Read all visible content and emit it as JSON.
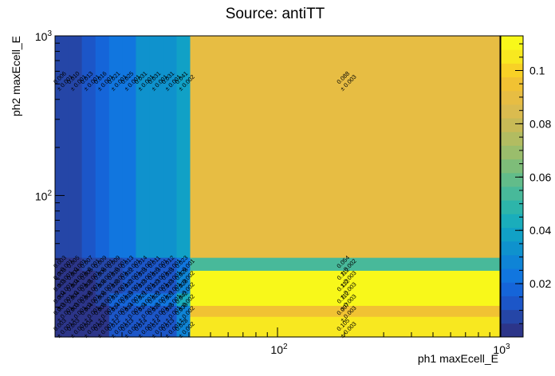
{
  "chart_data": {
    "type": "heatmap",
    "title": "Source: antiTT",
    "xlabel": "ph1 maxEcell_E",
    "ylabel": "ph2 maxEcell_E",
    "xscale": "log",
    "yscale": "log",
    "xlim": [
      10,
      1000
    ],
    "ylim": [
      13,
      1000
    ],
    "x_edges": [
      10,
      11.5,
      13.2,
      15.2,
      17.5,
      20.1,
      23.1,
      26.6,
      30.6,
      35.2,
      40.5,
      1000
    ],
    "y_edges": [
      13,
      17.5,
      20.5,
      24.5,
      29,
      34,
      41,
      1000
    ],
    "x_tick_labels": [
      "10^2",
      "10^3"
    ],
    "x_tick_values": [
      100,
      1000
    ],
    "y_tick_labels": [
      "10^2",
      "10^3"
    ],
    "y_tick_values": [
      100,
      1000
    ],
    "colorbar": {
      "range": [
        0,
        0.113
      ],
      "tick_values": [
        0.02,
        0.04,
        0.06,
        0.08,
        0.1
      ],
      "tick_labels": [
        "0.02",
        "0.04",
        "0.06",
        "0.08",
        "0.1"
      ],
      "palette": [
        "#2c3589",
        "#2546a7",
        "#1c56c8",
        "#1565d9",
        "#1176df",
        "#0f84d6",
        "#0f92cd",
        "#11a1c6",
        "#1aadbb",
        "#2db5aa",
        "#48b99a",
        "#62bc8a",
        "#7ebd79",
        "#9abd6c",
        "#b2bc61",
        "#c8ba56",
        "#dabb4f",
        "#e7bd43",
        "#f1c233",
        "#f8d126",
        "#f8e820",
        "#f8f81a"
      ]
    },
    "cells": [
      {
        "ix": 0,
        "iy": 0,
        "value": 0.003,
        "label": "0.003",
        "err": "± 0.001"
      },
      {
        "ix": 1,
        "iy": 0,
        "value": 0.003,
        "label": "0.003",
        "err": "± 0.001"
      },
      {
        "ix": 2,
        "iy": 0,
        "value": 0.004,
        "label": "0.004",
        "err": "± 0.001"
      },
      {
        "ix": 3,
        "iy": 0,
        "value": 0.004,
        "label": "0.004",
        "err": "± 0.001"
      },
      {
        "ix": 4,
        "iy": 0,
        "value": 0.012,
        "label": "0.012",
        "err": "± 0.001"
      },
      {
        "ix": 5,
        "iy": 0,
        "value": 0.013,
        "label": "0.013",
        "err": "± 0.001"
      },
      {
        "ix": 6,
        "iy": 0,
        "value": 0.014,
        "label": "0.014",
        "err": "± 0.001"
      },
      {
        "ix": 7,
        "iy": 0,
        "value": 0.014,
        "label": "0.014",
        "err": "± 0.001"
      },
      {
        "ix": 8,
        "iy": 0,
        "value": 0.013,
        "label": "0.013",
        "err": "± 0.001"
      },
      {
        "ix": 9,
        "iy": 0,
        "value": 0.028,
        "label": "0.028",
        "err": "± 0.002"
      },
      {
        "ix": 10,
        "iy": 0,
        "value": 0.105,
        "label": "0.105",
        "err": "± 0.003"
      },
      {
        "ix": 0,
        "iy": 1,
        "value": 0.003,
        "label": "0.003",
        "err": "± 0.001"
      },
      {
        "ix": 1,
        "iy": 1,
        "value": 0.003,
        "label": "0.003",
        "err": "± 0.001"
      },
      {
        "ix": 2,
        "iy": 1,
        "value": 0.004,
        "label": "0.004",
        "err": "± 0.001"
      },
      {
        "ix": 3,
        "iy": 1,
        "value": 0.005,
        "label": "0.005",
        "err": "± 0.001"
      },
      {
        "ix": 4,
        "iy": 1,
        "value": 0.014,
        "label": "0.014",
        "err": "± 0.001"
      },
      {
        "ix": 5,
        "iy": 1,
        "value": 0.014,
        "label": "0.014",
        "err": "± 0.001"
      },
      {
        "ix": 6,
        "iy": 1,
        "value": 0.014,
        "label": "0.014",
        "err": "± 0.001"
      },
      {
        "ix": 7,
        "iy": 1,
        "value": 0.015,
        "label": "0.015",
        "err": "± 0.001"
      },
      {
        "ix": 8,
        "iy": 1,
        "value": 0.015,
        "label": "0.015",
        "err": "± 0.001"
      },
      {
        "ix": 9,
        "iy": 1,
        "value": 0.03,
        "label": "0.030",
        "err": "± 0.002"
      },
      {
        "ix": 10,
        "iy": 1,
        "value": 0.097,
        "label": "0.097",
        "err": "± 0.003"
      },
      {
        "ix": 0,
        "iy": 2,
        "value": 0.004,
        "label": "0.004",
        "err": "± 0.001"
      },
      {
        "ix": 1,
        "iy": 2,
        "value": 0.004,
        "label": "0.004",
        "err": "± 0.001"
      },
      {
        "ix": 2,
        "iy": 2,
        "value": 0.005,
        "label": "0.005",
        "err": "± 0.001"
      },
      {
        "ix": 3,
        "iy": 2,
        "value": 0.006,
        "label": "0.006",
        "err": "± 0.001"
      },
      {
        "ix": 4,
        "iy": 2,
        "value": 0.017,
        "label": "0.017",
        "err": "± 0.001"
      },
      {
        "ix": 5,
        "iy": 2,
        "value": 0.019,
        "label": "0.019",
        "err": "± 0.001"
      },
      {
        "ix": 6,
        "iy": 2,
        "value": 0.021,
        "label": "0.021",
        "err": "± 0.001"
      },
      {
        "ix": 7,
        "iy": 2,
        "value": 0.022,
        "label": "0.022",
        "err": "± 0.001"
      },
      {
        "ix": 8,
        "iy": 2,
        "value": 0.021,
        "label": "0.021",
        "err": "± 0.001"
      },
      {
        "ix": 9,
        "iy": 2,
        "value": 0.042,
        "label": "0.042",
        "err": "± 0.002"
      },
      {
        "ix": 10,
        "iy": 2,
        "value": 0.112,
        "label": "0.112",
        "err": "± 0.003"
      },
      {
        "ix": 0,
        "iy": 3,
        "value": 0.003,
        "label": "0.003",
        "err": "± 0.001"
      },
      {
        "ix": 1,
        "iy": 3,
        "value": 0.004,
        "label": "0.004",
        "err": "± 0.001"
      },
      {
        "ix": 2,
        "iy": 3,
        "value": 0.005,
        "label": "0.005",
        "err": "± 0.001"
      },
      {
        "ix": 3,
        "iy": 3,
        "value": 0.006,
        "label": "0.006",
        "err": "± 0.001"
      },
      {
        "ix": 4,
        "iy": 3,
        "value": 0.01,
        "label": "0.010",
        "err": "± 0.001"
      },
      {
        "ix": 5,
        "iy": 3,
        "value": 0.012,
        "label": "0.012",
        "err": "± 0.001"
      },
      {
        "ix": 6,
        "iy": 3,
        "value": 0.013,
        "label": "0.013",
        "err": "± 0.001"
      },
      {
        "ix": 7,
        "iy": 3,
        "value": 0.013,
        "label": "0.013",
        "err": "± 0.001"
      },
      {
        "ix": 8,
        "iy": 3,
        "value": 0.013,
        "label": "0.013",
        "err": "± 0.001"
      },
      {
        "ix": 9,
        "iy": 3,
        "value": 0.028,
        "label": "0.028",
        "err": "± 0.002"
      },
      {
        "ix": 10,
        "iy": 3,
        "value": 0.112,
        "label": "0.112",
        "err": "± 0.003"
      },
      {
        "ix": 0,
        "iy": 4,
        "value": 0.003,
        "label": "0.003",
        "err": "± 0.001"
      },
      {
        "ix": 1,
        "iy": 4,
        "value": 0.004,
        "label": "0.004",
        "err": "± 0.001"
      },
      {
        "ix": 2,
        "iy": 4,
        "value": 0.005,
        "label": "0.005",
        "err": "± 0.001"
      },
      {
        "ix": 3,
        "iy": 4,
        "value": 0.006,
        "label": "0.006",
        "err": "± 0.001"
      },
      {
        "ix": 4,
        "iy": 4,
        "value": 0.01,
        "label": "0.010",
        "err": "± 0.001"
      },
      {
        "ix": 5,
        "iy": 4,
        "value": 0.012,
        "label": "0.012",
        "err": "± 0.001"
      },
      {
        "ix": 6,
        "iy": 4,
        "value": 0.013,
        "label": "0.013",
        "err": "± 0.001"
      },
      {
        "ix": 7,
        "iy": 4,
        "value": 0.013,
        "label": "0.013",
        "err": "± 0.001"
      },
      {
        "ix": 8,
        "iy": 4,
        "value": 0.013,
        "label": "0.013",
        "err": "± 0.001"
      },
      {
        "ix": 9,
        "iy": 4,
        "value": 0.028,
        "label": "0.028",
        "err": "± 0.002"
      },
      {
        "ix": 10,
        "iy": 4,
        "value": 0.112,
        "label": "0.112",
        "err": "± 0.003"
      },
      {
        "ix": 0,
        "iy": 5,
        "value": 0.003,
        "label": "0.003",
        "err": "± 0.001"
      },
      {
        "ix": 1,
        "iy": 5,
        "value": 0.005,
        "label": "0.005",
        "err": "± 0.001"
      },
      {
        "ix": 2,
        "iy": 5,
        "value": 0.007,
        "label": "0.007",
        "err": "± 0.001"
      },
      {
        "ix": 3,
        "iy": 5,
        "value": 0.009,
        "label": "0.009",
        "err": "± 0.001"
      },
      {
        "ix": 4,
        "iy": 5,
        "value": 0.009,
        "label": "0.009",
        "err": "± 0.001"
      },
      {
        "ix": 5,
        "iy": 5,
        "value": 0.013,
        "label": "0.013",
        "err": "± 0.001"
      },
      {
        "ix": 6,
        "iy": 5,
        "value": 0.014,
        "label": "0.014",
        "err": "± 0.001"
      },
      {
        "ix": 7,
        "iy": 5,
        "value": 0.011,
        "label": "0.011",
        "err": "± 0.001"
      },
      {
        "ix": 8,
        "iy": 5,
        "value": 0.012,
        "label": "0.012",
        "err": "± 0.001"
      },
      {
        "ix": 9,
        "iy": 5,
        "value": 0.023,
        "label": "0.023",
        "err": "± 0.001"
      },
      {
        "ix": 10,
        "iy": 5,
        "value": 0.054,
        "label": "0.054",
        "err": "± 0.002"
      },
      {
        "ix": 0,
        "iy": 6,
        "value": 0.006,
        "label": "0.006",
        "err": "± 0.001"
      },
      {
        "ix": 1,
        "iy": 6,
        "value": 0.01,
        "label": "0.010",
        "err": "± 0.001"
      },
      {
        "ix": 2,
        "iy": 6,
        "value": 0.013,
        "label": "0.013",
        "err": "± 0.001"
      },
      {
        "ix": 3,
        "iy": 6,
        "value": 0.016,
        "label": "0.016",
        "err": "± 0.001"
      },
      {
        "ix": 4,
        "iy": 6,
        "value": 0.021,
        "label": "0.021",
        "err": "± 0.001"
      },
      {
        "ix": 5,
        "iy": 6,
        "value": 0.025,
        "label": "0.025",
        "err": "± 0.001"
      },
      {
        "ix": 6,
        "iy": 6,
        "value": 0.031,
        "label": "0.031",
        "err": "± 0.001"
      },
      {
        "ix": 7,
        "iy": 6,
        "value": 0.031,
        "label": "0.031",
        "err": "± 0.001"
      },
      {
        "ix": 8,
        "iy": 6,
        "value": 0.031,
        "label": "0.031",
        "err": "± 0.001"
      },
      {
        "ix": 9,
        "iy": 6,
        "value": 0.041,
        "label": "0.041",
        "err": "± 0.002"
      },
      {
        "ix": 10,
        "iy": 6,
        "value": 0.088,
        "label": "0.088",
        "err": "± 0.003"
      }
    ]
  }
}
